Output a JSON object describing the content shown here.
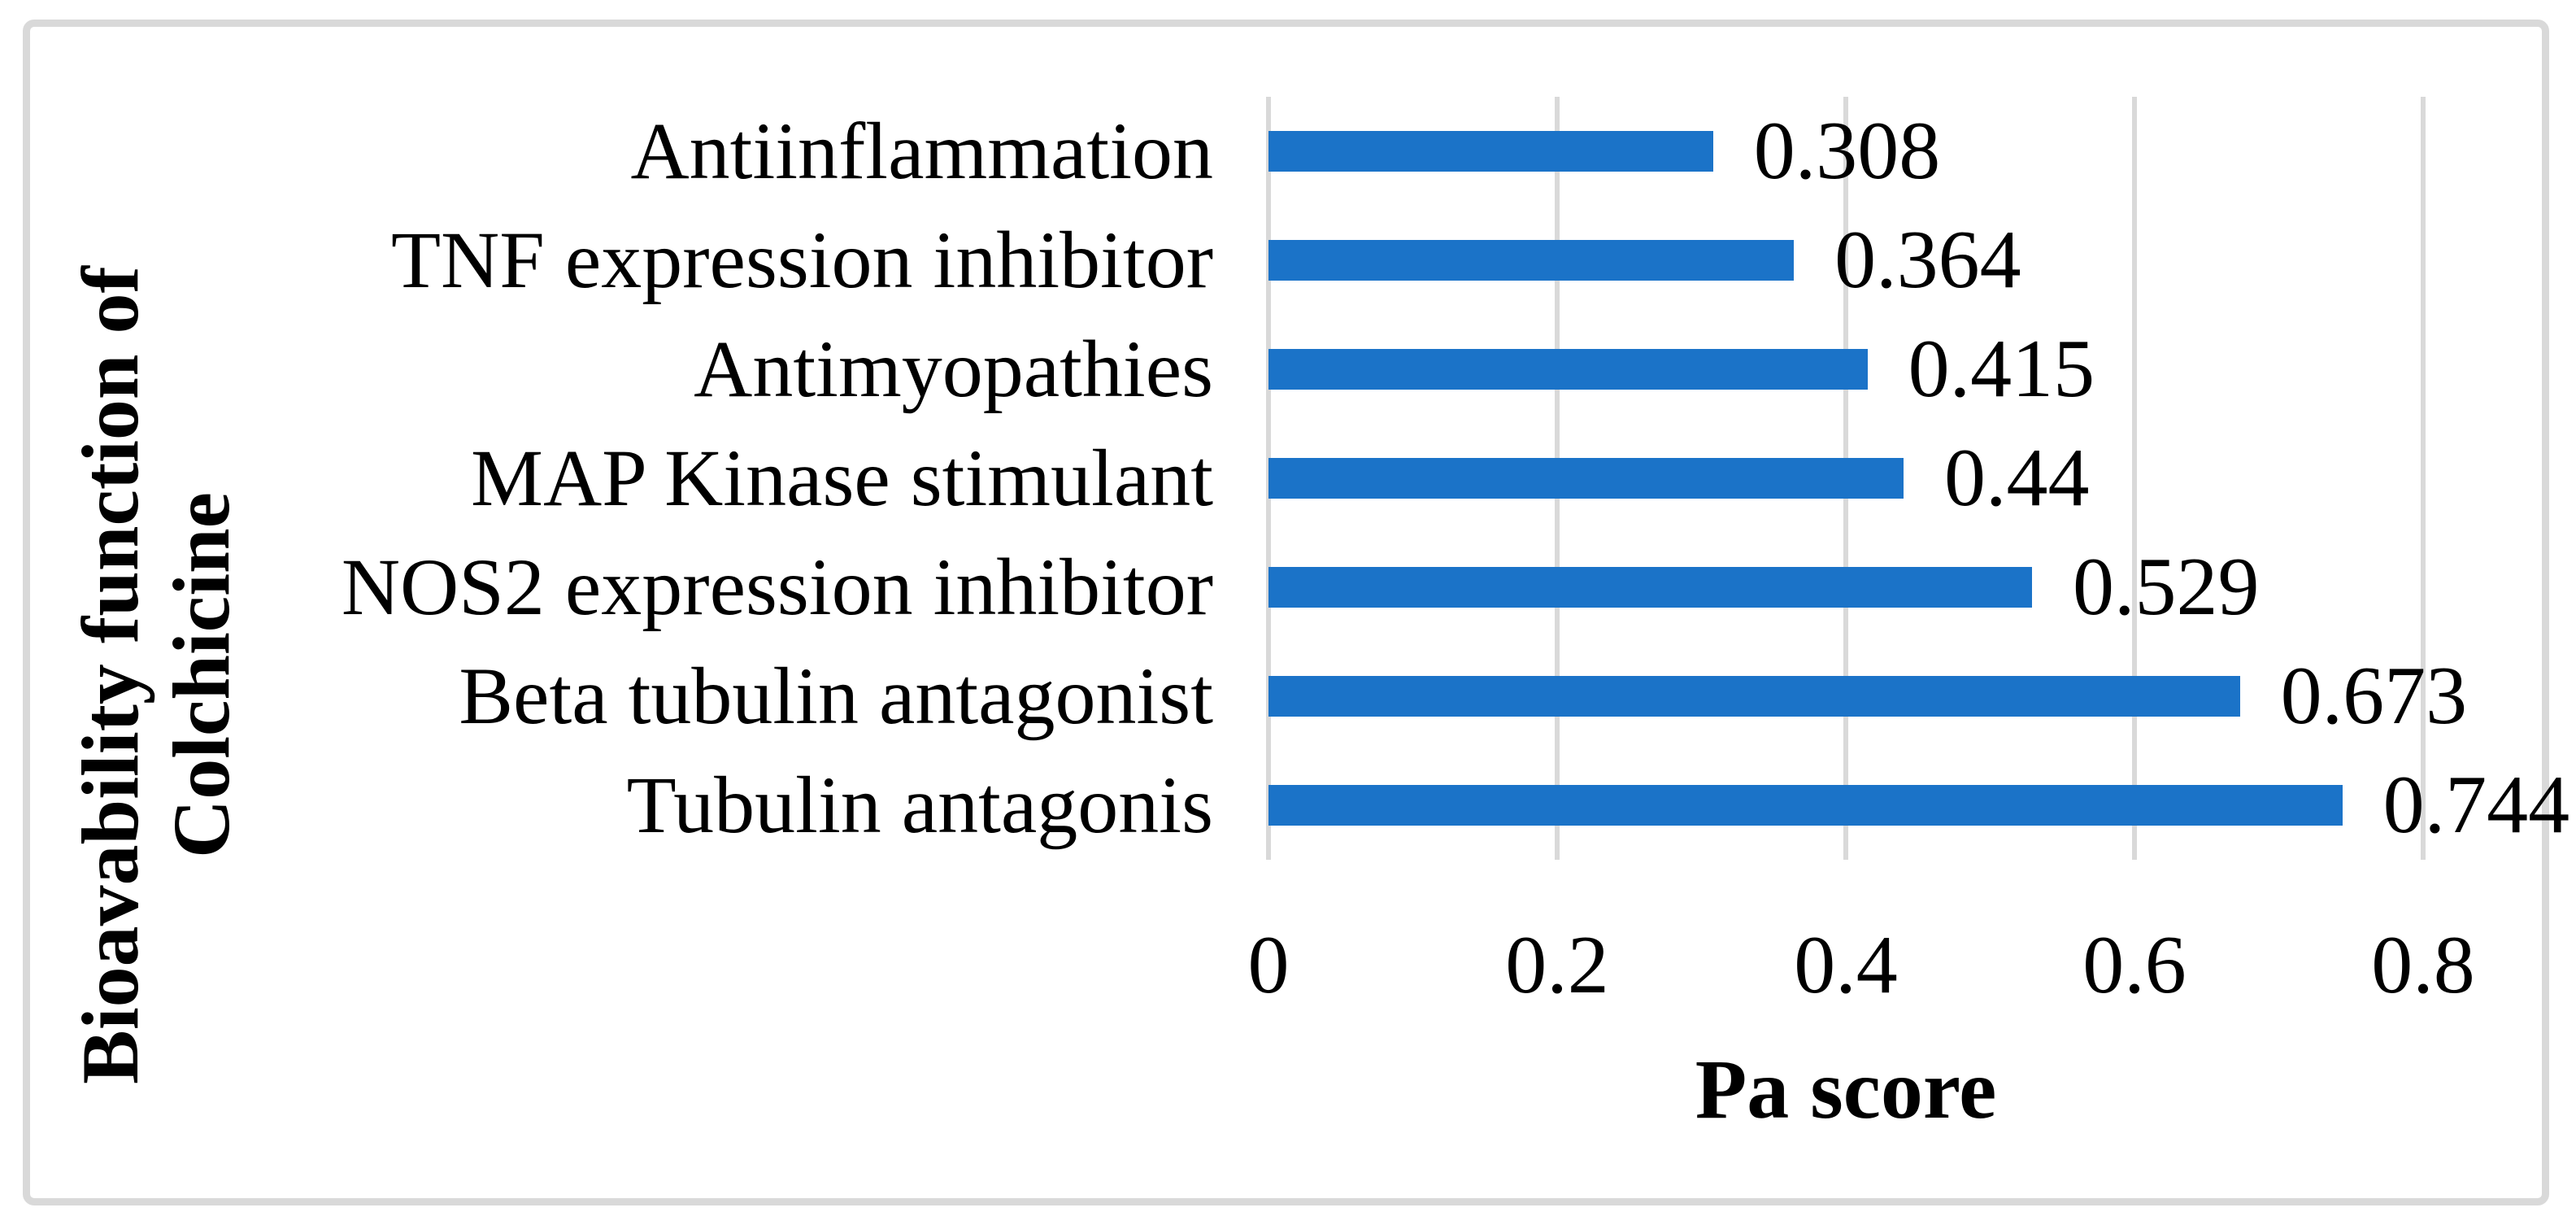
{
  "chart_data": {
    "type": "bar",
    "orientation": "horizontal",
    "categories": [
      "Antiinflammation",
      "TNF expression inhibitor",
      "Antimyopathies",
      "MAP Kinase stimulant",
      "NOS2 expression inhibitor",
      "Beta tubulin antagonist",
      "Tubulin antagonis"
    ],
    "values": [
      0.308,
      0.364,
      0.415,
      0.44,
      0.529,
      0.673,
      0.744
    ],
    "value_labels": [
      "0.308",
      "0.364",
      "0.415",
      "0.44",
      "0.529",
      "0.673",
      "0.744"
    ],
    "xlabel": "Pa score",
    "ylabel_lines": [
      "Bioavability function of",
      "Colchicine"
    ],
    "xlim": [
      0,
      0.8
    ],
    "xticks": [
      "0",
      "0.2",
      "0.4",
      "0.6",
      "0.8"
    ],
    "xtick_values": [
      0,
      0.2,
      0.4,
      0.6,
      0.8
    ],
    "grid": true,
    "legend": "none",
    "bar_color": "#1b73c8",
    "gridline_color": "#d9d9d9",
    "frame_color": "#d9d9d9",
    "text_color": "#000000",
    "background_color": "#ffffff"
  }
}
